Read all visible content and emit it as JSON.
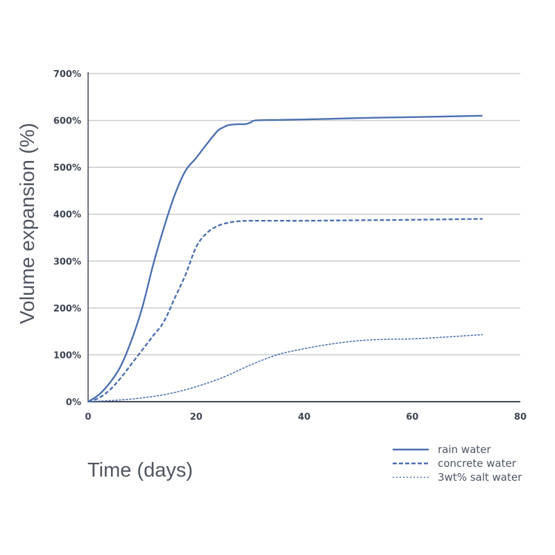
{
  "chart_data": {
    "type": "line",
    "xlabel": "Time (days)",
    "ylabel": "Volume expansion (%)",
    "xlim": [
      0,
      80
    ],
    "ylim": [
      0,
      700
    ],
    "x_ticks": [
      0,
      20,
      40,
      60,
      80
    ],
    "y_ticks": [
      0,
      100,
      200,
      300,
      400,
      500,
      600,
      700
    ],
    "x_tick_labels": [
      "0",
      "20",
      "40",
      "60",
      "80"
    ],
    "y_tick_labels": [
      "0%",
      "100%",
      "200%",
      "300%",
      "400%",
      "500%",
      "600%",
      "700%"
    ],
    "grid": "horizontal",
    "legend_placement": "bottom-right",
    "line_color": "#4a6fb0",
    "series": [
      {
        "name": "rain water",
        "style": "solid",
        "x": [
          0,
          2,
          4,
          6,
          8,
          10,
          12,
          14,
          16,
          18,
          20,
          22,
          24,
          25,
          26,
          28,
          29,
          30,
          31,
          35,
          40,
          50,
          60,
          73
        ],
        "y": [
          0,
          15,
          40,
          75,
          130,
          200,
          290,
          370,
          440,
          492,
          520,
          550,
          578,
          585,
          590,
          592,
          592,
          595,
          600,
          601,
          602,
          605,
          607,
          610
        ]
      },
      {
        "name": "concrete water",
        "style": "dashed",
        "x": [
          0,
          2,
          4,
          6,
          8,
          10,
          12,
          14,
          16,
          18,
          20,
          22,
          24,
          26,
          28,
          30,
          35,
          40,
          50,
          60,
          73
        ],
        "y": [
          0,
          8,
          25,
          50,
          80,
          110,
          140,
          170,
          220,
          270,
          330,
          360,
          375,
          382,
          385,
          386,
          386,
          386,
          387,
          388,
          390
        ]
      },
      {
        "name": "3wt% salt water",
        "style": "dotted",
        "x": [
          0,
          5,
          10,
          15,
          20,
          25,
          30,
          35,
          40,
          45,
          50,
          55,
          60,
          65,
          73
        ],
        "y": [
          0,
          3,
          8,
          17,
          32,
          52,
          78,
          100,
          113,
          123,
          130,
          133,
          134,
          137,
          143
        ]
      }
    ]
  }
}
